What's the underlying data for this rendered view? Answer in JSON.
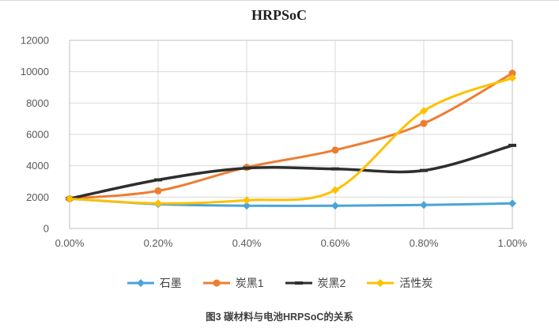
{
  "page": {
    "caption": "图3 碳材料与电池HRPSoC的关系"
  },
  "chart_data": {
    "type": "line",
    "title": "HRPSoC",
    "categories": [
      "0.00%",
      "0.20%",
      "0.40%",
      "0.60%",
      "0.80%",
      "1.00%"
    ],
    "series": [
      {
        "id": "graphite",
        "name": "石墨",
        "color": "#4AA4D8",
        "marker": "diamond",
        "values": [
          1900,
          1550,
          1450,
          1450,
          1500,
          1600
        ]
      },
      {
        "id": "carbon-black-1",
        "name": "炭黑1",
        "color": "#ED7D31",
        "marker": "circle",
        "values": [
          1900,
          2400,
          3900,
          5000,
          6700,
          9900
        ]
      },
      {
        "id": "carbon-black-2",
        "name": "炭黑2",
        "color": "#2E2E2E",
        "marker": "dash",
        "values": [
          1900,
          3100,
          3850,
          3800,
          3700,
          5300
        ]
      },
      {
        "id": "activated-carbon",
        "name": "活性炭",
        "color": "#FFC000",
        "marker": "diamond",
        "values": [
          1900,
          1600,
          1800,
          2450,
          7500,
          9600
        ]
      }
    ],
    "xlabel": "",
    "ylabel": "",
    "ylim": [
      0,
      12000
    ],
    "ytick_interval": 2000,
    "grid": true,
    "legend_position": "bottom",
    "colors": {
      "grid": "#d9d9d9",
      "plot_border": "#bfbfbf",
      "axis_text": "#595959",
      "title_text": "#1f1f1f",
      "caption_text": "#3f3f3f"
    }
  }
}
